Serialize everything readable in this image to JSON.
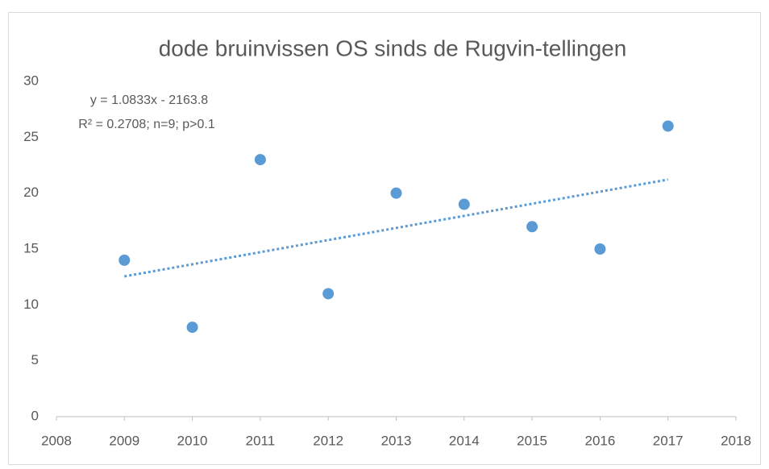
{
  "chart_data": {
    "type": "scatter",
    "title": "dode bruinvissen OS sinds de Rugvin-tellingen",
    "annotations": [
      "y = 1.0833x - 2163.8",
      "R² = 0.2708; n=9; p>0.1"
    ],
    "x": [
      2009,
      2010,
      2011,
      2012,
      2013,
      2014,
      2015,
      2016,
      2017
    ],
    "series": [
      {
        "color": "#5b9bd5",
        "values": [
          14,
          8,
          23,
          11,
          20,
          19,
          17,
          15,
          26
        ]
      }
    ],
    "trendline": {
      "slope": 1.0833,
      "intercept": -2163.8,
      "style": "dotted"
    },
    "xlim": [
      2008,
      2018
    ],
    "xticks": [
      2008,
      2009,
      2010,
      2011,
      2012,
      2013,
      2014,
      2015,
      2016,
      2017,
      2018
    ],
    "ylim": [
      0,
      30
    ],
    "yticks": [
      0,
      5,
      10,
      15,
      20,
      25,
      30
    ],
    "grid": false
  }
}
